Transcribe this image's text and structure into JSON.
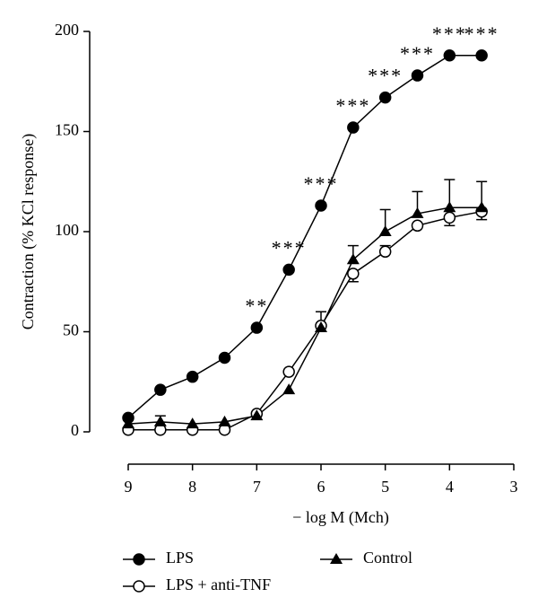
{
  "chart_data": {
    "type": "line",
    "xlabel": "− log M (Mch)",
    "ylabel": "Contraction (% KCl response)",
    "x": [
      9,
      8.5,
      8,
      7.5,
      7,
      6.5,
      6,
      5.5,
      5,
      4.5,
      4,
      3.5
    ],
    "xlim": [
      9,
      3
    ],
    "xticks": [
      9,
      8,
      7,
      6,
      5,
      4,
      3
    ],
    "ylim": [
      0,
      200
    ],
    "yticks": [
      0,
      50,
      100,
      150,
      200
    ],
    "series": [
      {
        "name": "LPS",
        "color": "#000000",
        "marker": "filled-circle",
        "values": [
          7,
          21,
          27.5,
          37,
          52,
          81,
          113,
          152,
          167,
          178,
          188,
          188
        ]
      },
      {
        "name": "LPS + anti-TNF",
        "color": "#000000",
        "marker": "open-circle",
        "values": [
          1,
          1,
          1,
          1,
          9,
          30,
          53,
          79,
          90,
          103,
          107,
          110
        ],
        "errors": [
          null,
          null,
          null,
          null,
          null,
          null,
          7,
          4,
          3,
          null,
          4,
          4
        ]
      },
      {
        "name": "Control",
        "color": "#000000",
        "marker": "triangle",
        "values": [
          4,
          5,
          4,
          5,
          8,
          21,
          52,
          86,
          100,
          109,
          112,
          112
        ],
        "errors": [
          null,
          3,
          null,
          null,
          null,
          null,
          null,
          7,
          11,
          11,
          14,
          13
        ]
      }
    ],
    "annotations": [
      {
        "x": 7,
        "text": "**"
      },
      {
        "x": 6.5,
        "text": "***"
      },
      {
        "x": 6,
        "text": "***"
      },
      {
        "x": 5.5,
        "text": "***"
      },
      {
        "x": 5,
        "text": "***"
      },
      {
        "x": 4.5,
        "text": "***"
      },
      {
        "x": 4,
        "text": "***"
      },
      {
        "x": 3.5,
        "text": "***"
      }
    ]
  }
}
